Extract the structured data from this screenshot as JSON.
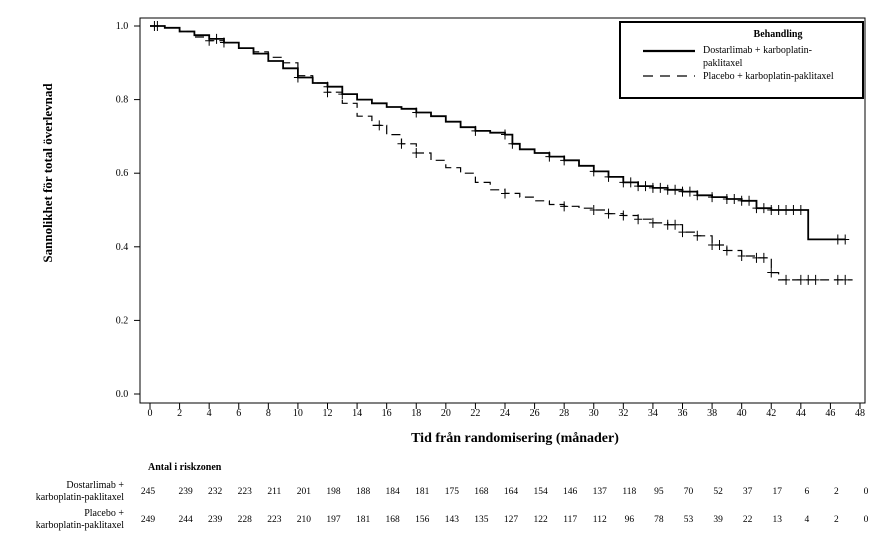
{
  "chart_data": {
    "type": "line",
    "subtype": "kaplan-meier",
    "xlabel": "Tid från randomisering  (månader)",
    "ylabel": "Sannolikhet för total överlevnad",
    "xlim": [
      0,
      48
    ],
    "ylim": [
      0,
      1
    ],
    "x_ticks": [
      "0",
      "2",
      "4",
      "6",
      "8",
      "10",
      "12",
      "14",
      "16",
      "18",
      "20",
      "22",
      "24",
      "26",
      "28",
      "30",
      "32",
      "34",
      "36",
      "38",
      "40",
      "42",
      "44",
      "46",
      "48"
    ],
    "y_ticks": [
      "0.0",
      "0.2",
      "0.4",
      "0.6",
      "0.8",
      "1.0"
    ],
    "legend": {
      "title": "Behandling",
      "position": "top-right",
      "entries": [
        {
          "line1": "Dostarlimab + karboplatin-",
          "line2": "paklitaxel",
          "style": "solid"
        },
        {
          "line1": "Placebo + karboplatin-paklitaxel",
          "line2": "",
          "style": "dashed"
        }
      ]
    },
    "series": [
      {
        "name": "Dostarlimab + karboplatin-paklitaxel",
        "style": "solid",
        "points": [
          [
            0,
            1.0
          ],
          [
            1,
            0.995
          ],
          [
            2,
            0.985
          ],
          [
            3,
            0.975
          ],
          [
            4,
            0.965
          ],
          [
            5,
            0.955
          ],
          [
            6,
            0.94
          ],
          [
            7,
            0.925
          ],
          [
            8,
            0.905
          ],
          [
            9,
            0.885
          ],
          [
            10,
            0.86
          ],
          [
            11,
            0.845
          ],
          [
            12,
            0.835
          ],
          [
            13,
            0.815
          ],
          [
            14,
            0.8
          ],
          [
            15,
            0.79
          ],
          [
            16,
            0.78
          ],
          [
            17,
            0.775
          ],
          [
            18,
            0.765
          ],
          [
            19,
            0.755
          ],
          [
            20,
            0.74
          ],
          [
            21,
            0.725
          ],
          [
            22,
            0.715
          ],
          [
            23,
            0.71
          ],
          [
            24,
            0.705
          ],
          [
            24.5,
            0.68
          ],
          [
            25,
            0.665
          ],
          [
            26,
            0.655
          ],
          [
            27,
            0.645
          ],
          [
            28,
            0.635
          ],
          [
            29,
            0.62
          ],
          [
            30,
            0.605
          ],
          [
            31,
            0.59
          ],
          [
            32,
            0.575
          ],
          [
            33,
            0.565
          ],
          [
            34,
            0.56
          ],
          [
            35,
            0.555
          ],
          [
            36,
            0.55
          ],
          [
            37,
            0.54
          ],
          [
            38,
            0.535
          ],
          [
            39,
            0.53
          ],
          [
            40,
            0.525
          ],
          [
            41,
            0.505
          ],
          [
            42,
            0.5
          ],
          [
            43,
            0.5
          ],
          [
            44,
            0.5
          ],
          [
            44.5,
            0.42
          ],
          [
            47,
            0.42
          ]
        ],
        "censor_x": [
          0.3,
          0.5,
          4.5,
          5,
          10,
          12,
          13,
          18,
          22,
          24,
          24.5,
          27,
          28,
          30,
          31,
          32,
          32.5,
          33,
          33.5,
          34,
          34.5,
          35,
          35.5,
          36,
          36.5,
          37,
          38,
          39,
          39.5,
          40,
          40.5,
          41,
          41.5,
          42,
          42.5,
          43,
          43.5,
          44,
          46.5,
          47
        ]
      },
      {
        "name": "Placebo + karboplatin-paklitaxel",
        "style": "dashed",
        "points": [
          [
            0,
            1.0
          ],
          [
            1,
            0.995
          ],
          [
            2,
            0.985
          ],
          [
            3,
            0.97
          ],
          [
            4,
            0.96
          ],
          [
            5,
            0.955
          ],
          [
            6,
            0.94
          ],
          [
            7,
            0.93
          ],
          [
            8,
            0.915
          ],
          [
            9,
            0.9
          ],
          [
            10,
            0.865
          ],
          [
            11,
            0.845
          ],
          [
            12,
            0.82
          ],
          [
            13,
            0.79
          ],
          [
            14,
            0.755
          ],
          [
            15,
            0.73
          ],
          [
            16,
            0.705
          ],
          [
            17,
            0.68
          ],
          [
            18,
            0.655
          ],
          [
            19,
            0.635
          ],
          [
            20,
            0.615
          ],
          [
            21,
            0.6
          ],
          [
            22,
            0.575
          ],
          [
            23,
            0.555
          ],
          [
            24,
            0.545
          ],
          [
            25,
            0.535
          ],
          [
            26,
            0.525
          ],
          [
            27,
            0.515
          ],
          [
            28,
            0.51
          ],
          [
            29,
            0.505
          ],
          [
            30,
            0.5
          ],
          [
            31,
            0.49
          ],
          [
            32,
            0.485
          ],
          [
            33,
            0.475
          ],
          [
            34,
            0.465
          ],
          [
            35,
            0.46
          ],
          [
            36,
            0.44
          ],
          [
            37,
            0.43
          ],
          [
            38,
            0.405
          ],
          [
            39,
            0.39
          ],
          [
            40,
            0.375
          ],
          [
            41,
            0.37
          ],
          [
            42,
            0.33
          ],
          [
            42.5,
            0.31
          ],
          [
            44,
            0.31
          ],
          [
            47.5,
            0.31
          ]
        ],
        "censor_x": [
          4,
          12,
          15.5,
          17,
          18,
          24,
          28,
          30,
          31,
          32,
          33,
          34,
          35,
          35.5,
          36,
          37,
          38,
          38.5,
          39,
          40,
          41,
          41.5,
          42,
          43,
          44,
          44.5,
          45,
          46.5,
          47
        ]
      }
    ],
    "risk_table": {
      "title": "Antal i riskzonen",
      "timepoints": [
        0,
        2,
        4,
        6,
        8,
        10,
        12,
        14,
        16,
        18,
        20,
        22,
        24,
        26,
        28,
        30,
        32,
        34,
        36,
        38,
        40,
        42,
        44,
        46,
        48
      ],
      "rows": [
        {
          "label_line1": "Dostarlimab +",
          "label_line2": "karboplatin-paklitaxel",
          "values": [
            "245",
            "239",
            "232",
            "223",
            "211",
            "201",
            "198",
            "188",
            "184",
            "181",
            "175",
            "168",
            "164",
            "154",
            "146",
            "137",
            "118",
            "95",
            "70",
            "52",
            "37",
            "17",
            "6",
            "2",
            "0"
          ]
        },
        {
          "label_line1": "Placebo +",
          "label_line2": "karboplatin-paklitaxel",
          "values": [
            "249",
            "244",
            "239",
            "228",
            "223",
            "210",
            "197",
            "181",
            "168",
            "156",
            "143",
            "135",
            "127",
            "122",
            "117",
            "112",
            "96",
            "78",
            "53",
            "39",
            "22",
            "13",
            "4",
            "2",
            "0"
          ]
        }
      ]
    }
  }
}
